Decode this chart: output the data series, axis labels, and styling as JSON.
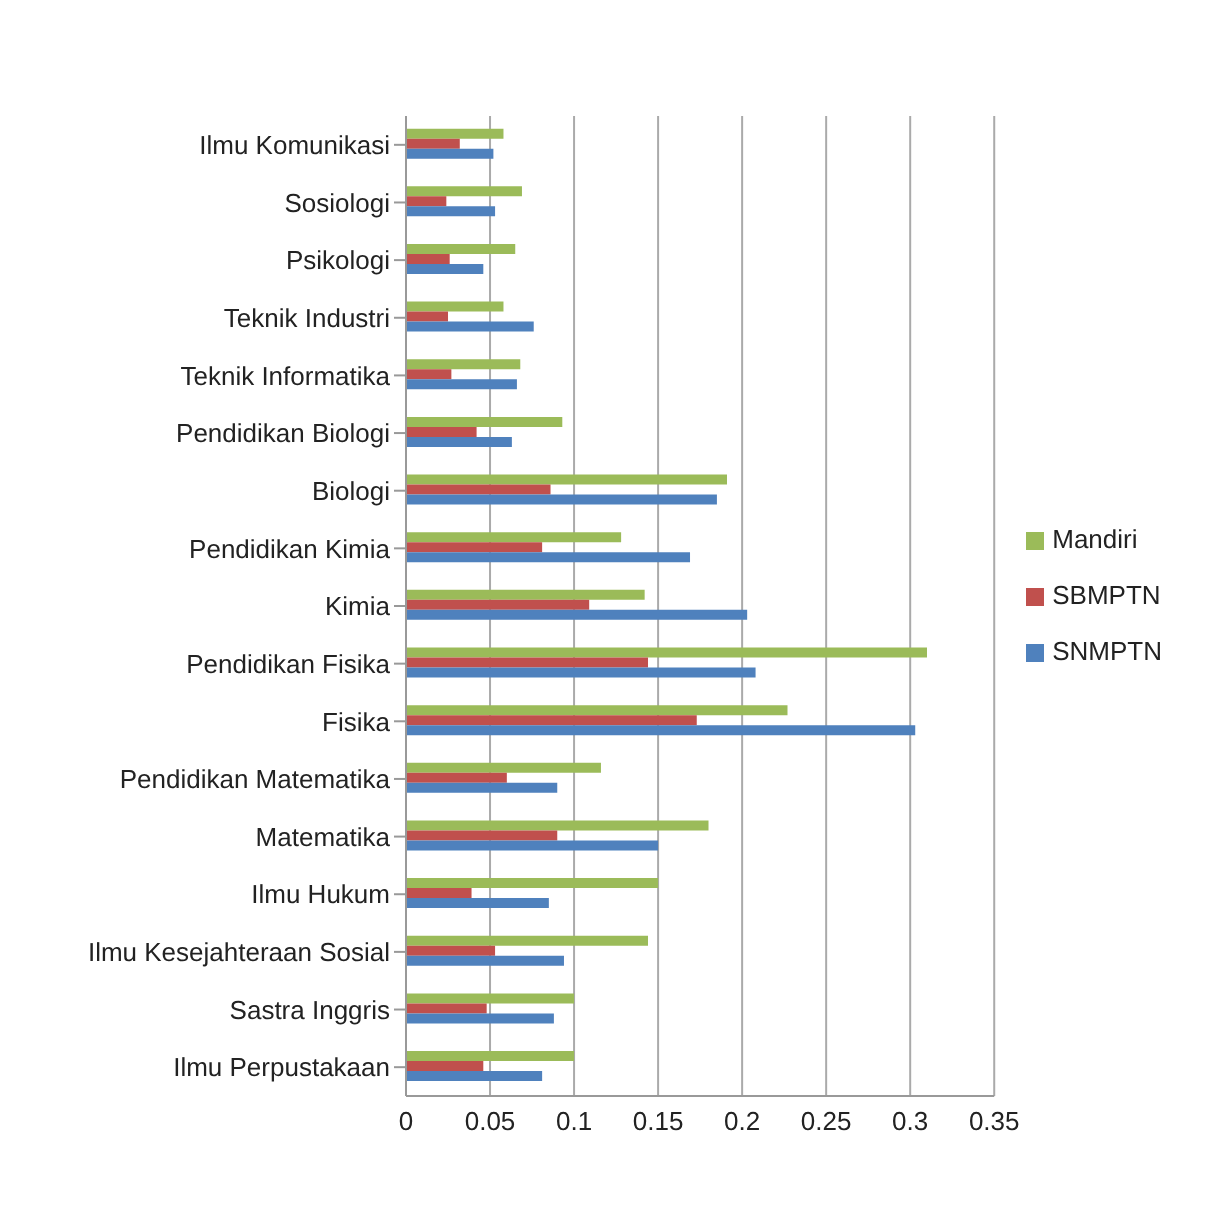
{
  "chart_data": {
    "type": "bar",
    "orientation": "horizontal",
    "categories": [
      "Ilmu Komunikasi",
      "Sosiologi",
      "Psikologi",
      "Teknik Industri",
      "Teknik Informatika",
      "Pendidikan Biologi",
      "Biologi",
      "Pendidikan Kimia",
      "Kimia",
      "Pendidikan Fisika",
      "Fisika",
      "Pendidikan Matematika",
      "Matematika",
      "Ilmu Hukum",
      "Ilmu Kesejahteraan Sosial",
      "Sastra Inggris",
      "Ilmu Perpustakaan"
    ],
    "series": [
      {
        "name": "Mandiri",
        "color": "#9bbb59",
        "values": [
          0.058,
          0.069,
          0.065,
          0.058,
          0.068,
          0.093,
          0.191,
          0.128,
          0.142,
          0.31,
          0.227,
          0.116,
          0.18,
          0.15,
          0.144,
          0.1,
          0.1
        ]
      },
      {
        "name": "SBMPTN",
        "color": "#c0504d",
        "values": [
          0.032,
          0.024,
          0.026,
          0.025,
          0.027,
          0.042,
          0.086,
          0.081,
          0.109,
          0.144,
          0.173,
          0.06,
          0.09,
          0.039,
          0.053,
          0.048,
          0.046
        ]
      },
      {
        "name": "SNMPTN",
        "color": "#4f81bd",
        "values": [
          0.052,
          0.053,
          0.046,
          0.076,
          0.066,
          0.063,
          0.185,
          0.169,
          0.203,
          0.208,
          0.303,
          0.09,
          0.15,
          0.085,
          0.094,
          0.088,
          0.081
        ]
      }
    ],
    "xlim": [
      0,
      0.35
    ],
    "xticks": [
      0,
      0.05,
      0.1,
      0.15,
      0.2,
      0.25,
      0.3,
      0.35
    ],
    "grid": "x",
    "legend": "right"
  }
}
